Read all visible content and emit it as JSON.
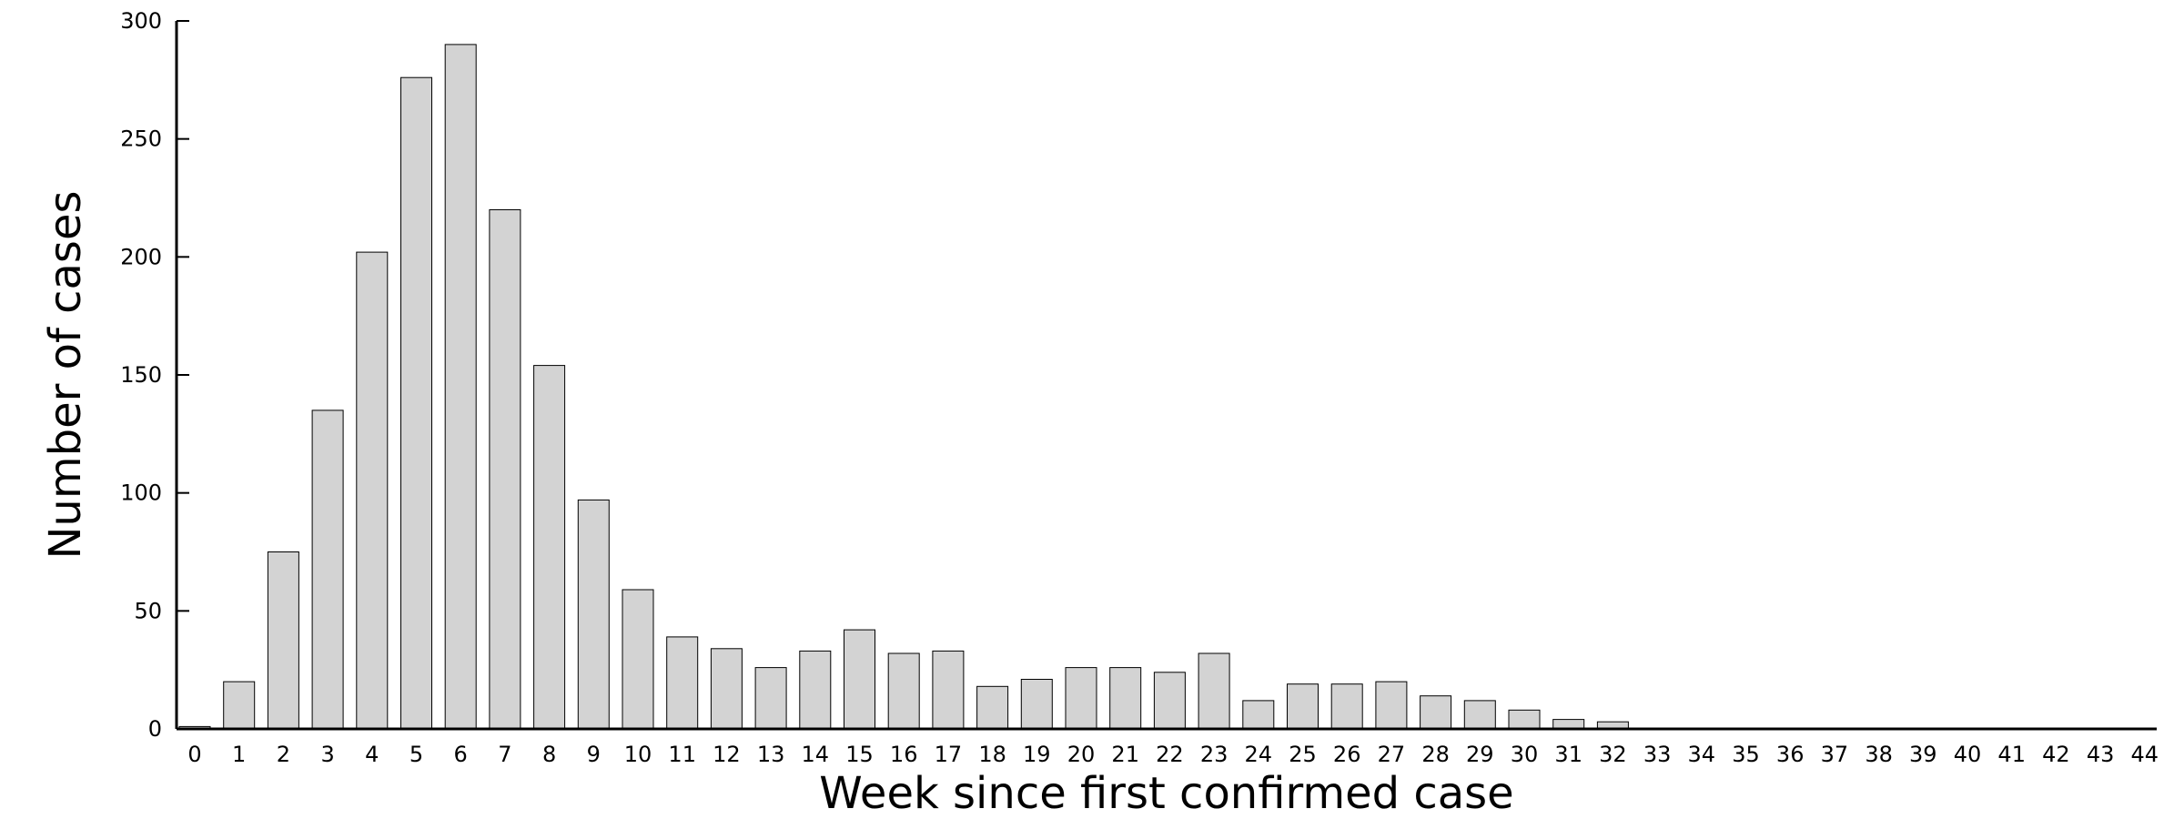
{
  "chart_data": {
    "type": "bar",
    "title": "",
    "xlabel": "Week since first confirmed case",
    "ylabel": "Number of cases",
    "categories": [
      "0",
      "1",
      "2",
      "3",
      "4",
      "5",
      "6",
      "7",
      "8",
      "9",
      "10",
      "11",
      "12",
      "13",
      "14",
      "15",
      "16",
      "17",
      "18",
      "19",
      "20",
      "21",
      "22",
      "23",
      "24",
      "25",
      "26",
      "27",
      "28",
      "29",
      "30",
      "31",
      "32",
      "33",
      "34",
      "35",
      "36",
      "37",
      "38",
      "39",
      "40",
      "41",
      "42",
      "43",
      "44"
    ],
    "values": [
      1,
      20,
      75,
      135,
      202,
      276,
      290,
      220,
      154,
      97,
      59,
      39,
      34,
      26,
      33,
      42,
      32,
      33,
      18,
      21,
      26,
      26,
      24,
      32,
      12,
      19,
      19,
      20,
      14,
      12,
      8,
      4,
      3,
      0,
      0,
      0,
      0,
      0,
      0,
      0,
      0,
      0,
      0,
      0,
      0
    ],
    "ylim": [
      0,
      300
    ],
    "yticks": [
      0,
      50,
      100,
      150,
      200,
      250,
      300
    ],
    "grid": false,
    "legend": "none",
    "bar_fill": "#d3d3d3",
    "bar_stroke": "#000000"
  }
}
